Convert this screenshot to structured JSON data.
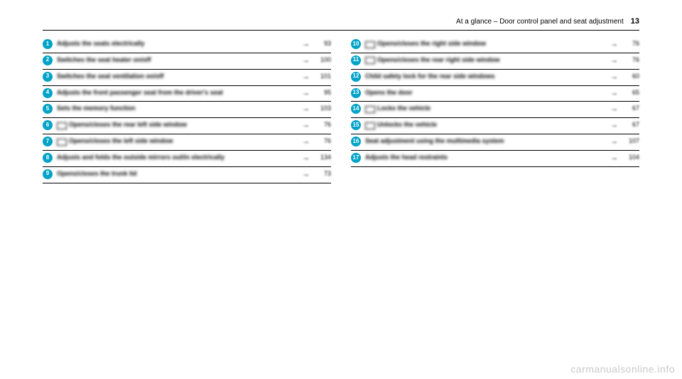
{
  "header": {
    "section": "At a glance – Door control panel and seat adjustment",
    "pageNumber": "13"
  },
  "leftColumn": [
    {
      "num": "1",
      "icon": "",
      "text": "Adjusts the seats electrically",
      "page": "93"
    },
    {
      "num": "2",
      "icon": "",
      "text": "Switches the seat heater on/off",
      "page": "100"
    },
    {
      "num": "3",
      "icon": "",
      "text": "Switches the seat ventilation on/off",
      "page": "101"
    },
    {
      "num": "4",
      "icon": "",
      "text": "Adjusts the front passenger seat from the driver's seat",
      "page": "95"
    },
    {
      "num": "5",
      "icon": "",
      "text": "Sets the memory function",
      "page": "103"
    },
    {
      "num": "6",
      "icon": "□",
      "text": "Opens/closes the rear left side window",
      "page": "76"
    },
    {
      "num": "7",
      "icon": "□",
      "text": "Opens/closes the left side window",
      "page": "76"
    },
    {
      "num": "8",
      "icon": "",
      "text": "Adjusts and folds the outside mirrors out/in electrically",
      "page": "134"
    },
    {
      "num": "9",
      "icon": "",
      "text": "Opens/closes the trunk lid",
      "page": "73"
    }
  ],
  "rightColumn": [
    {
      "num": "10",
      "icon": "□",
      "text": "Opens/closes the right side window",
      "page": "76"
    },
    {
      "num": "11",
      "icon": "□",
      "text": "Opens/closes the rear right side window",
      "page": "76"
    },
    {
      "num": "12",
      "icon": "",
      "text": "Child safety lock for the rear side windows",
      "page": "60"
    },
    {
      "num": "13",
      "icon": "",
      "text": "Opens the door",
      "page": "65"
    },
    {
      "num": "14",
      "icon": "□",
      "text": "Locks the vehicle",
      "page": "67"
    },
    {
      "num": "15",
      "icon": "□",
      "text": "Unlocks the vehicle",
      "page": "67"
    },
    {
      "num": "16",
      "icon": "",
      "text": "Seat adjustment using the multimedia system",
      "page": "107"
    },
    {
      "num": "17",
      "icon": "",
      "text": "Adjusts the head restraints",
      "page": "104"
    }
  ],
  "watermark": "carmanualsonline.info",
  "arrowGlyph": "→"
}
